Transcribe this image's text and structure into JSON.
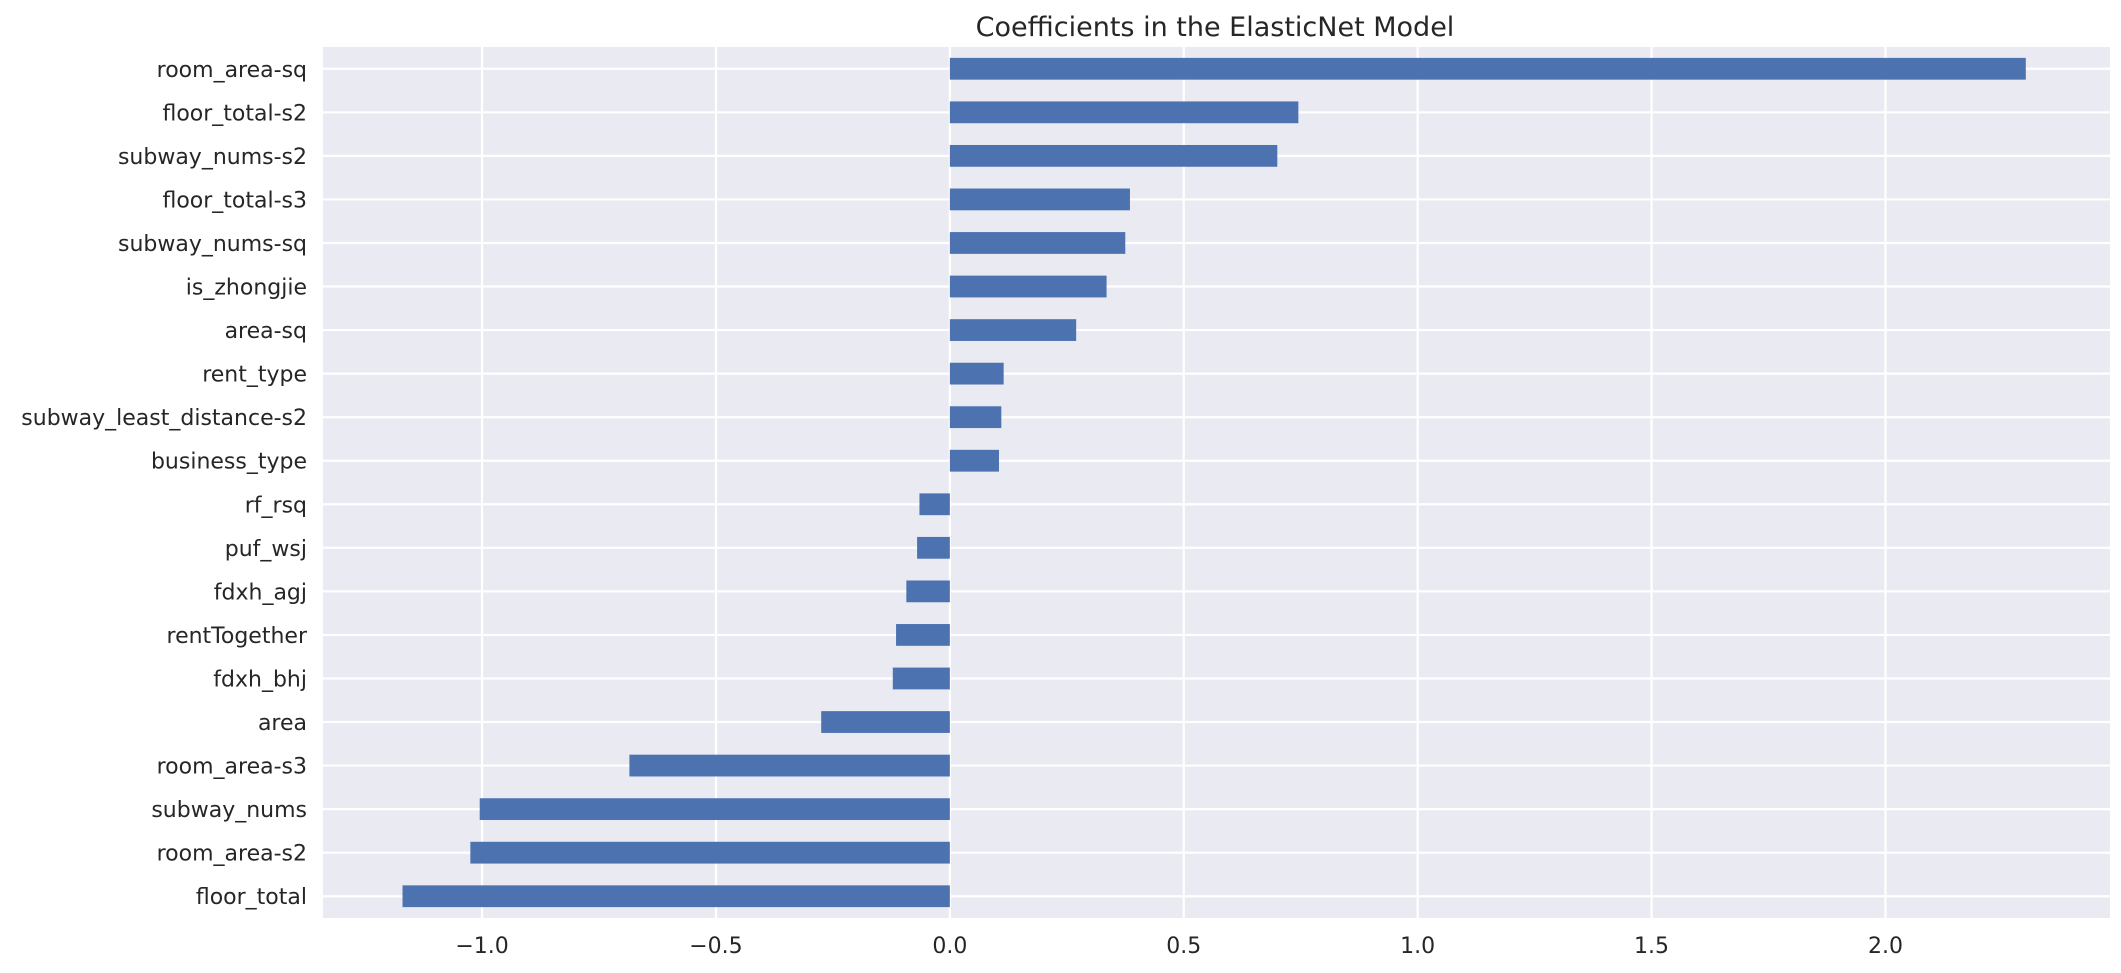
{
  "chart_data": {
    "type": "bar",
    "orientation": "horizontal",
    "title": "Coefficients in the ElasticNet Model",
    "xlabel": "",
    "ylabel": "",
    "categories": [
      "room_area-sq",
      "floor_total-s2",
      "subway_nums-s2",
      "floor_total-s3",
      "subway_nums-sq",
      "is_zhongjie",
      "area-sq",
      "rent_type",
      "subway_least_distance-s2",
      "business_type",
      "rf_rsq",
      "puf_wsj",
      "fdxh_agj",
      "rentTogether",
      "fdxh_bhj",
      "area",
      "room_area-s3",
      "subway_nums",
      "room_area-s2",
      "floor_total"
    ],
    "values": [
      2.3,
      0.745,
      0.7,
      0.385,
      0.375,
      0.335,
      0.27,
      0.115,
      0.11,
      0.105,
      -0.065,
      -0.07,
      -0.093,
      -0.115,
      -0.122,
      -0.275,
      -0.685,
      -1.005,
      -1.025,
      -1.17
    ],
    "xlim": [
      -1.34,
      2.48
    ],
    "xticks": [
      -1.0,
      -0.5,
      0.0,
      0.5,
      1.0,
      1.5,
      2.0
    ],
    "xtick_labels": [
      "−1.0",
      "−0.5",
      "0.0",
      "0.5",
      "1.0",
      "1.5",
      "2.0"
    ],
    "grid": true,
    "colors": {
      "bar": "#4c72b0",
      "background": "#eaeaf2",
      "grid": "#ffffff",
      "text": "#262626"
    }
  }
}
